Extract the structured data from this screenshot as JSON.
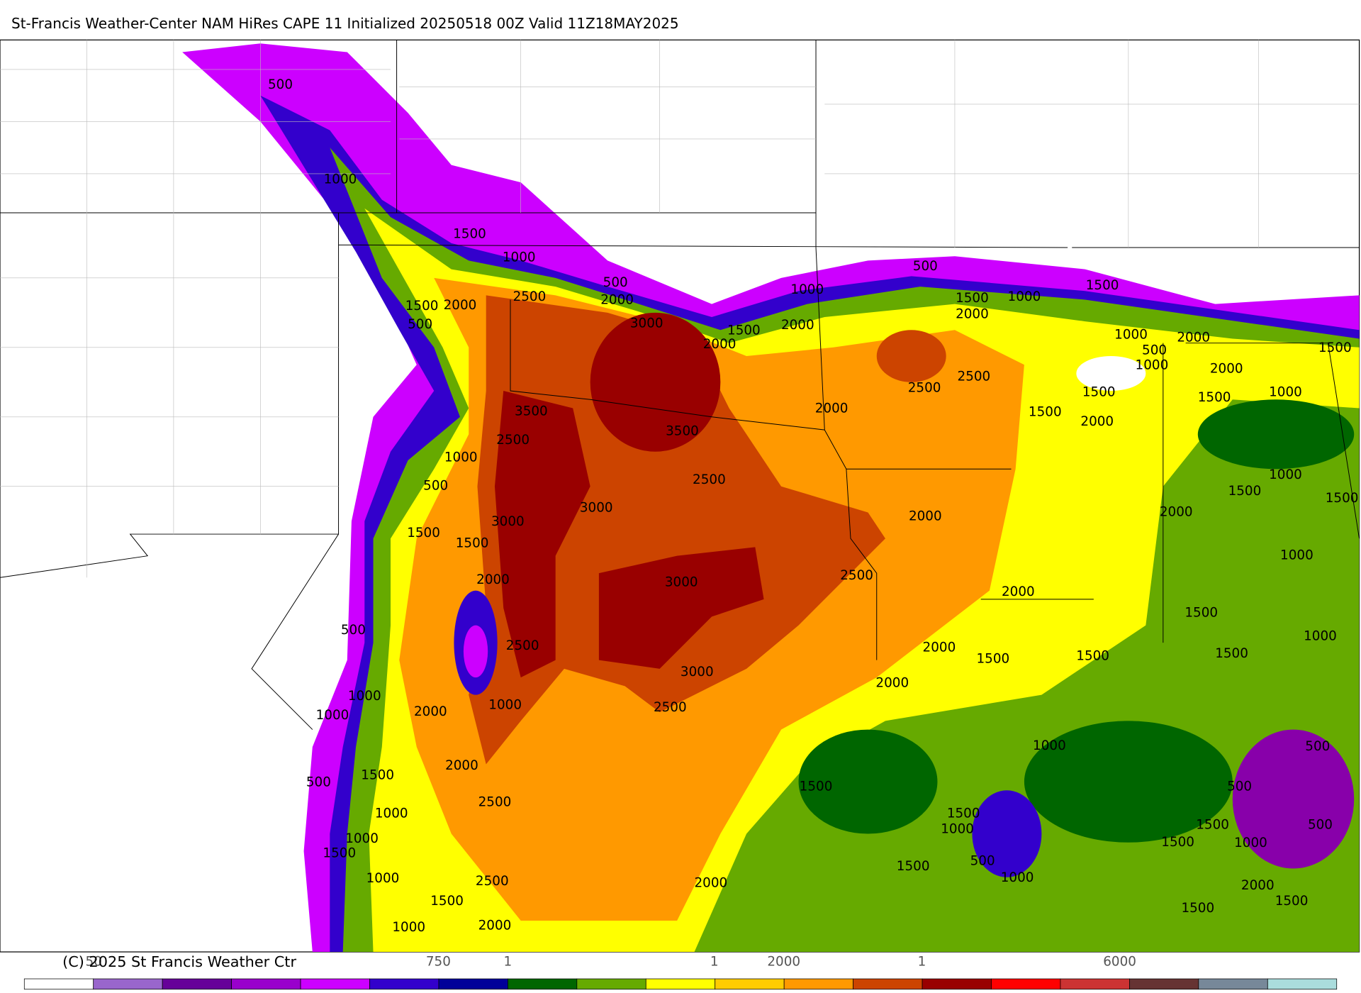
{
  "header": {
    "title": "St-Francis Weather-Center NAM HiRes CAPE  11 Initialized 20250518 00Z Valid 11Z18MAY2025"
  },
  "map": {
    "contour_labels": [
      500,
      1000,
      1500,
      1000,
      500,
      2000,
      2500,
      2000,
      1500,
      500,
      3000,
      1500,
      2000,
      1000,
      500,
      2000,
      1500,
      2000,
      1000,
      1500,
      1000,
      500,
      1000,
      2000,
      1500,
      2000,
      1500,
      2000,
      1500,
      2500,
      2500,
      2000,
      1000,
      1500,
      3500,
      2500,
      3500,
      1000,
      500,
      2500,
      1000,
      1500,
      1500,
      2000,
      2000,
      3000,
      3000,
      1500,
      1500,
      2000,
      3000,
      2500,
      1000,
      2000,
      1500,
      500,
      2500,
      2000,
      1500,
      1500,
      1500,
      1000,
      3000,
      2000,
      1000,
      1000,
      2000,
      1000,
      2500,
      1000,
      500,
      2000,
      1500,
      500,
      1500,
      500,
      2500,
      1000,
      1500,
      1000,
      1500,
      500,
      1000,
      1000,
      1500,
      1500,
      500,
      1500,
      1000,
      1000,
      2500,
      2000,
      2000,
      1500,
      1500,
      1500,
      1000,
      2000
    ]
  },
  "footer": {
    "copyright": "(C) 2025 St Francis Weather Ctr",
    "colorbar_labels": [
      "50",
      "750",
      "1",
      "1",
      "2000",
      "1",
      "6000"
    ]
  }
}
